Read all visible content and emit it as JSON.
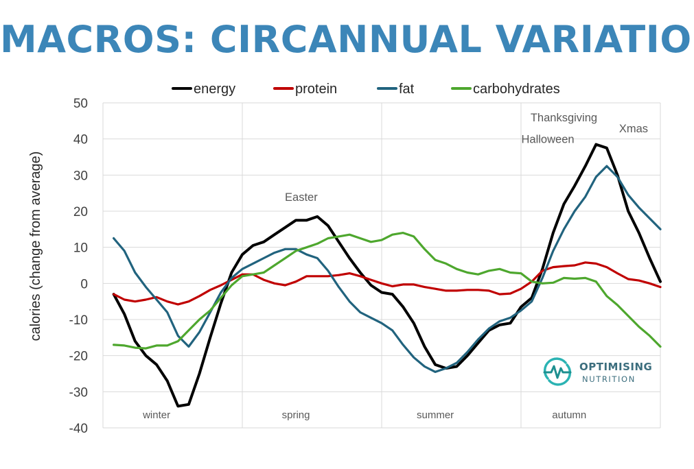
{
  "title": "MACROS: CIRCANNUAL VARIATION",
  "logo": {
    "line1": "OPTIMISING",
    "line2": "NUTRITION"
  },
  "chart_data": {
    "type": "line",
    "title": "MACROS: CIRCANNUAL VARIATION",
    "xlabel": "",
    "ylabel": "calories (change from average)",
    "ylim": [
      -40,
      50
    ],
    "yticks": [
      50,
      40,
      30,
      20,
      10,
      0,
      -10,
      -20,
      -30,
      -40
    ],
    "xlim": [
      0,
      52
    ],
    "grid": true,
    "legend_position": "top",
    "seasons": [
      {
        "label": "winter",
        "x": 5
      },
      {
        "label": "spring",
        "x": 18
      },
      {
        "label": "summer",
        "x": 31
      },
      {
        "label": "autumn",
        "x": 43.5
      }
    ],
    "season_dividers": [
      13,
      26,
      39
    ],
    "annotations": [
      {
        "label": "Easter",
        "x": 18.5,
        "y": 24
      },
      {
        "label": "Thanksgiving",
        "x": 43,
        "y": 46
      },
      {
        "label": "Halloween",
        "x": 41.5,
        "y": 40
      },
      {
        "label": "Xmas",
        "x": 49.5,
        "y": 43
      }
    ],
    "x": [
      1,
      2,
      3,
      4,
      5,
      6,
      7,
      8,
      9,
      10,
      11,
      12,
      13,
      14,
      15,
      16,
      17,
      18,
      19,
      20,
      21,
      22,
      23,
      24,
      25,
      26,
      27,
      28,
      29,
      30,
      31,
      32,
      33,
      34,
      35,
      36,
      37,
      38,
      39,
      40,
      41,
      42,
      43,
      44,
      45,
      46,
      47,
      48,
      49,
      50,
      51,
      52
    ],
    "series": [
      {
        "name": "energy",
        "color": "#000000",
        "values": [
          -3,
          -8.5,
          -16,
          -20,
          -22.5,
          -27,
          -34,
          -33.5,
          -25,
          -15,
          -5.5,
          3,
          8,
          10.5,
          11.5,
          13.5,
          15.5,
          17.5,
          17.5,
          18.5,
          16,
          11.5,
          7,
          3,
          -0.5,
          -2.5,
          -3,
          -6.5,
          -11,
          -17.5,
          -22.5,
          -23.5,
          -23,
          -20,
          -16.5,
          -13,
          -11.5,
          -11,
          -6.5,
          -4,
          4,
          14,
          22,
          27,
          32.5,
          38.5,
          37.5,
          30,
          20,
          14,
          7,
          0.5
        ]
      },
      {
        "name": "protein",
        "color": "#c00000",
        "values": [
          -3,
          -4.5,
          -5,
          -4.5,
          -3.8,
          -5,
          -5.8,
          -5,
          -3.5,
          -1.8,
          -0.5,
          1,
          2.5,
          2.5,
          1,
          0,
          -0.5,
          0.5,
          2,
          2,
          2,
          2.3,
          2.8,
          2,
          1,
          0,
          -0.8,
          -0.3,
          -0.3,
          -1,
          -1.5,
          -2,
          -2,
          -1.8,
          -1.8,
          -2,
          -3,
          -2.8,
          -1.5,
          0.5,
          3.5,
          4.5,
          4.8,
          5,
          5.8,
          5.5,
          4.5,
          2.8,
          1.2,
          0.8,
          0,
          -1
        ]
      },
      {
        "name": "fat",
        "color": "#21637e",
        "values": [
          12.5,
          9,
          3,
          -1,
          -4.5,
          -8,
          -14.5,
          -17.5,
          -13.5,
          -8,
          -2.5,
          1.5,
          4,
          5.5,
          7,
          8.5,
          9.5,
          9.5,
          8,
          7,
          3.5,
          -1,
          -5,
          -8,
          -9.5,
          -11,
          -13,
          -17,
          -20.5,
          -23,
          -24.5,
          -23.5,
          -22,
          -19,
          -15.5,
          -12.5,
          -10.5,
          -9.5,
          -7.5,
          -5,
          1.5,
          9,
          15,
          20,
          24,
          29.5,
          32.5,
          29.5,
          24.5,
          21,
          18,
          15
        ]
      },
      {
        "name": "carbohydrates",
        "color": "#4ea72e",
        "values": [
          -17,
          -17.2,
          -17.8,
          -18,
          -17.2,
          -17.2,
          -16,
          -13,
          -10,
          -7.5,
          -4,
          -0.5,
          2,
          2.5,
          3,
          5,
          7,
          9,
          10,
          11,
          12.5,
          13,
          13.5,
          12.5,
          11.5,
          12,
          13.5,
          14,
          13,
          9.5,
          6.5,
          5.5,
          4,
          3,
          2.5,
          3.5,
          4,
          3,
          2.8,
          0.5,
          0,
          0.2,
          1.5,
          1.3,
          1.5,
          0.5,
          -3.5,
          -6,
          -9,
          -12,
          -14.5,
          -17.5
        ]
      }
    ]
  }
}
